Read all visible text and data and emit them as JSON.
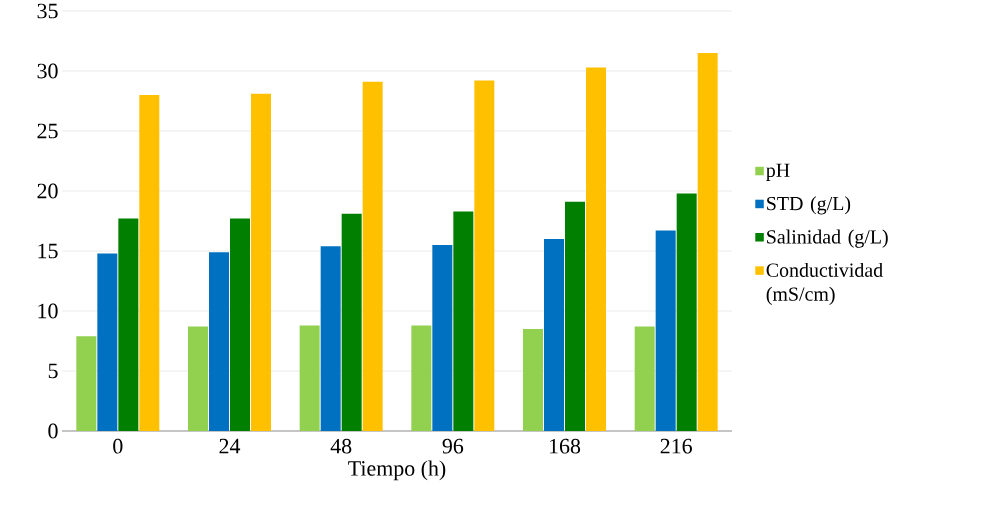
{
  "chart_data": {
    "type": "bar",
    "xlabel": "Tiempo (h)",
    "categories": [
      "0",
      "24",
      "48",
      "96",
      "168",
      "216"
    ],
    "series": [
      {
        "name": "pH",
        "color": "#92d050",
        "values": [
          7.9,
          8.7,
          8.8,
          8.8,
          8.5,
          8.7
        ]
      },
      {
        "name": "STD (g/L)",
        "color": "#0070c0",
        "values": [
          14.8,
          14.9,
          15.4,
          15.5,
          16.0,
          16.7
        ]
      },
      {
        "name": "Salinidad (g/L)",
        "color": "#007f00",
        "values": [
          17.7,
          17.7,
          18.1,
          18.3,
          19.1,
          19.8
        ]
      },
      {
        "name": "Conductividad (mS/cm)",
        "color": "#ffc000",
        "values": [
          28.0,
          28.1,
          29.1,
          29.2,
          30.3,
          31.5
        ]
      }
    ],
    "ylim": [
      0,
      35
    ],
    "yticks": [
      0,
      5,
      10,
      15,
      20,
      25,
      30,
      35
    ],
    "grid": "y",
    "legend": "right"
  }
}
